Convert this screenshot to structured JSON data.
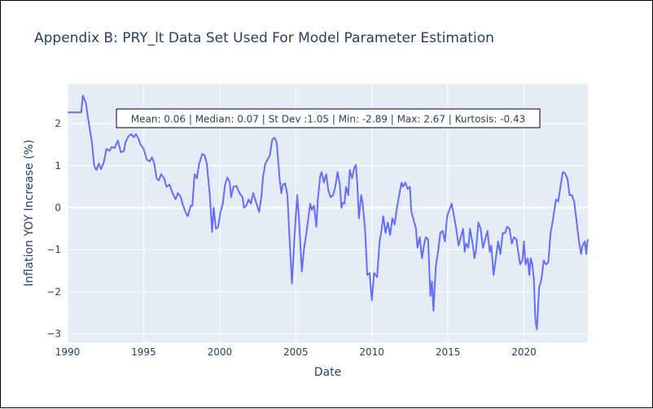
{
  "chart_data": {
    "type": "line",
    "title": "Appendix B: PRY_lt Data Set Used For Model Parameter Estimation",
    "xlabel": "Date",
    "ylabel": "Inflation YOY Increase (%)",
    "xlim": [
      1990,
      2024.2
    ],
    "ylim": [
      -3.2,
      2.95
    ],
    "x_ticks": [
      1990,
      1995,
      2000,
      2005,
      2010,
      2015,
      2020
    ],
    "x_tick_labels": [
      "1990",
      "1995",
      "2000",
      "2005",
      "2010",
      "2015",
      "2020"
    ],
    "y_ticks": [
      -3,
      -2,
      -1,
      0,
      1,
      2
    ],
    "y_tick_labels": [
      "−3",
      "−2",
      "−1",
      "0",
      "1",
      "2"
    ],
    "grid": true,
    "annotation": "Mean: 0.06 | Median: 0.07 | St Dev :1.05 | Min: -2.89 | Max: 2.67 | Kurtosis: -0.43",
    "colors": {
      "line": "#636efa",
      "plot_bg": "#e5ecf6",
      "grid": "#ffffff",
      "text": "#2a3f5f"
    },
    "series": [
      {
        "points": [
          [
            1990.0,
            2.27
          ],
          [
            1990.5,
            2.27
          ],
          [
            1990.9,
            2.27
          ],
          [
            1991.0,
            2.67
          ],
          [
            1991.2,
            2.5
          ],
          [
            1991.4,
            2.0
          ],
          [
            1991.6,
            1.55
          ],
          [
            1991.75,
            1.0
          ],
          [
            1991.9,
            0.9
          ],
          [
            1992.05,
            1.05
          ],
          [
            1992.2,
            0.92
          ],
          [
            1992.4,
            1.1
          ],
          [
            1992.55,
            1.4
          ],
          [
            1992.75,
            1.35
          ],
          [
            1992.9,
            1.45
          ],
          [
            1993.1,
            1.42
          ],
          [
            1993.3,
            1.6
          ],
          [
            1993.5,
            1.32
          ],
          [
            1993.7,
            1.35
          ],
          [
            1993.8,
            1.55
          ],
          [
            1994.0,
            1.7
          ],
          [
            1994.2,
            1.75
          ],
          [
            1994.35,
            1.68
          ],
          [
            1994.5,
            1.75
          ],
          [
            1994.65,
            1.65
          ],
          [
            1994.8,
            1.5
          ],
          [
            1995.0,
            1.4
          ],
          [
            1995.2,
            1.15
          ],
          [
            1995.4,
            1.1
          ],
          [
            1995.55,
            1.2
          ],
          [
            1995.7,
            1.05
          ],
          [
            1995.85,
            0.7
          ],
          [
            1996.0,
            0.65
          ],
          [
            1996.15,
            0.8
          ],
          [
            1996.35,
            0.7
          ],
          [
            1996.5,
            0.5
          ],
          [
            1996.7,
            0.55
          ],
          [
            1996.9,
            0.35
          ],
          [
            1997.1,
            0.2
          ],
          [
            1997.25,
            0.35
          ],
          [
            1997.45,
            0.25
          ],
          [
            1997.55,
            0.1
          ],
          [
            1997.75,
            -0.1
          ],
          [
            1997.9,
            -0.2
          ],
          [
            1998.1,
            0.05
          ],
          [
            1998.2,
            0.05
          ],
          [
            1998.35,
            0.8
          ],
          [
            1998.5,
            0.7
          ],
          [
            1998.65,
            1.05
          ],
          [
            1998.85,
            1.28
          ],
          [
            1999.0,
            1.25
          ],
          [
            1999.15,
            1.05
          ],
          [
            1999.35,
            0.3
          ],
          [
            1999.5,
            -0.58
          ],
          [
            1999.6,
            0.0
          ],
          [
            1999.75,
            -0.5
          ],
          [
            1999.9,
            -0.45
          ],
          [
            2000.05,
            -0.1
          ],
          [
            2000.2,
            0.1
          ],
          [
            2000.35,
            0.55
          ],
          [
            2000.5,
            0.72
          ],
          [
            2000.65,
            0.62
          ],
          [
            2000.75,
            0.25
          ],
          [
            2000.9,
            0.5
          ],
          [
            2001.1,
            0.52
          ],
          [
            2001.3,
            0.35
          ],
          [
            2001.5,
            0.25
          ],
          [
            2001.6,
            0.0
          ],
          [
            2001.75,
            0.05
          ],
          [
            2001.9,
            0.2
          ],
          [
            2002.05,
            0.1
          ],
          [
            2002.2,
            0.35
          ],
          [
            2002.35,
            0.18
          ],
          [
            2002.5,
            0.0
          ],
          [
            2002.6,
            -0.1
          ],
          [
            2002.75,
            0.3
          ],
          [
            2002.85,
            0.75
          ],
          [
            2003.0,
            1.05
          ],
          [
            2003.15,
            1.15
          ],
          [
            2003.3,
            1.25
          ],
          [
            2003.45,
            1.62
          ],
          [
            2003.6,
            1.67
          ],
          [
            2003.75,
            1.55
          ],
          [
            2003.95,
            0.65
          ],
          [
            2004.05,
            0.35
          ],
          [
            2004.15,
            0.55
          ],
          [
            2004.3,
            0.58
          ],
          [
            2004.45,
            0.3
          ],
          [
            2004.6,
            -0.8
          ],
          [
            2004.75,
            -1.8
          ],
          [
            2004.9,
            -0.8
          ],
          [
            2005.0,
            -0.2
          ],
          [
            2005.1,
            0.3
          ],
          [
            2005.2,
            -0.2
          ],
          [
            2005.4,
            -1.52
          ],
          [
            2005.55,
            -0.95
          ],
          [
            2005.7,
            -0.6
          ],
          [
            2005.85,
            -0.2
          ],
          [
            2005.95,
            0.1
          ],
          [
            2006.05,
            -0.05
          ],
          [
            2006.2,
            0.05
          ],
          [
            2006.35,
            -0.45
          ],
          [
            2006.45,
            0.2
          ],
          [
            2006.6,
            0.75
          ],
          [
            2006.7,
            0.85
          ],
          [
            2006.85,
            0.6
          ],
          [
            2007.0,
            0.8
          ],
          [
            2007.15,
            0.4
          ],
          [
            2007.3,
            0.25
          ],
          [
            2007.45,
            0.3
          ],
          [
            2007.6,
            0.5
          ],
          [
            2007.75,
            0.85
          ],
          [
            2007.9,
            0.55
          ],
          [
            2008.0,
            0.0
          ],
          [
            2008.1,
            0.12
          ],
          [
            2008.2,
            0.1
          ],
          [
            2008.3,
            0.5
          ],
          [
            2008.45,
            0.3
          ],
          [
            2008.55,
            0.9
          ],
          [
            2008.7,
            0.7
          ],
          [
            2008.85,
            0.95
          ],
          [
            2008.95,
            1.02
          ],
          [
            2009.05,
            0.55
          ],
          [
            2009.15,
            -0.25
          ],
          [
            2009.3,
            0.3
          ],
          [
            2009.4,
            0.1
          ],
          [
            2009.55,
            -0.5
          ],
          [
            2009.7,
            -1.6
          ],
          [
            2009.85,
            -1.55
          ],
          [
            2010.0,
            -2.2
          ],
          [
            2010.15,
            -1.55
          ],
          [
            2010.35,
            -1.65
          ],
          [
            2010.5,
            -0.85
          ],
          [
            2010.65,
            -0.5
          ],
          [
            2010.75,
            -0.2
          ],
          [
            2010.9,
            -0.6
          ],
          [
            2011.05,
            -0.35
          ],
          [
            2011.2,
            -0.65
          ],
          [
            2011.35,
            -0.25
          ],
          [
            2011.5,
            -0.4
          ],
          [
            2011.65,
            0.0
          ],
          [
            2011.8,
            0.3
          ],
          [
            2011.95,
            0.6
          ],
          [
            2012.05,
            0.5
          ],
          [
            2012.2,
            0.6
          ],
          [
            2012.35,
            0.45
          ],
          [
            2012.5,
            0.5
          ],
          [
            2012.6,
            -0.1
          ],
          [
            2012.75,
            -0.3
          ],
          [
            2012.9,
            -0.5
          ],
          [
            2013.0,
            -0.95
          ],
          [
            2013.15,
            -0.7
          ],
          [
            2013.3,
            -1.2
          ],
          [
            2013.45,
            -0.85
          ],
          [
            2013.55,
            -0.7
          ],
          [
            2013.7,
            -0.75
          ],
          [
            2013.85,
            -2.1
          ],
          [
            2013.95,
            -1.75
          ],
          [
            2014.05,
            -2.45
          ],
          [
            2014.2,
            -1.4
          ],
          [
            2014.35,
            -1.05
          ],
          [
            2014.5,
            -0.6
          ],
          [
            2014.65,
            -0.55
          ],
          [
            2014.8,
            -0.8
          ],
          [
            2014.95,
            -0.2
          ],
          [
            2015.1,
            -0.05
          ],
          [
            2015.25,
            0.1
          ],
          [
            2015.4,
            -0.2
          ],
          [
            2015.55,
            -0.5
          ],
          [
            2015.7,
            -0.9
          ],
          [
            2015.85,
            -0.7
          ],
          [
            2016.0,
            -0.5
          ],
          [
            2016.1,
            -1.05
          ],
          [
            2016.2,
            -0.85
          ],
          [
            2016.35,
            -0.95
          ],
          [
            2016.45,
            -0.5
          ],
          [
            2016.6,
            -0.8
          ],
          [
            2016.75,
            -1.2
          ],
          [
            2016.85,
            -1.0
          ],
          [
            2017.0,
            -0.35
          ],
          [
            2017.15,
            -0.5
          ],
          [
            2017.3,
            -0.95
          ],
          [
            2017.45,
            -0.75
          ],
          [
            2017.6,
            -0.55
          ],
          [
            2017.75,
            -1.05
          ],
          [
            2017.85,
            -0.9
          ],
          [
            2018.0,
            -1.6
          ],
          [
            2018.15,
            -1.2
          ],
          [
            2018.3,
            -0.8
          ],
          [
            2018.45,
            -1.1
          ],
          [
            2018.6,
            -0.6
          ],
          [
            2018.75,
            -0.6
          ],
          [
            2018.9,
            -0.45
          ],
          [
            2019.05,
            -0.5
          ],
          [
            2019.2,
            -0.85
          ],
          [
            2019.35,
            -0.7
          ],
          [
            2019.5,
            -0.75
          ],
          [
            2019.6,
            -1.0
          ],
          [
            2019.75,
            -1.35
          ],
          [
            2019.9,
            -1.25
          ],
          [
            2020.0,
            -0.8
          ],
          [
            2020.1,
            -1.35
          ],
          [
            2020.25,
            -1.2
          ],
          [
            2020.35,
            -1.6
          ],
          [
            2020.45,
            -1.2
          ],
          [
            2020.55,
            -1.35
          ],
          [
            2020.65,
            -1.7
          ],
          [
            2020.75,
            -2.65
          ],
          [
            2020.85,
            -2.89
          ],
          [
            2021.0,
            -1.9
          ],
          [
            2021.15,
            -1.7
          ],
          [
            2021.3,
            -1.25
          ],
          [
            2021.45,
            -1.35
          ],
          [
            2021.6,
            -1.3
          ],
          [
            2021.75,
            -0.6
          ],
          [
            2021.9,
            -0.3
          ],
          [
            2022.1,
            0.2
          ],
          [
            2022.25,
            0.15
          ],
          [
            2022.4,
            0.5
          ],
          [
            2022.55,
            0.85
          ],
          [
            2022.7,
            0.82
          ],
          [
            2022.85,
            0.7
          ],
          [
            2023.0,
            0.3
          ],
          [
            2023.15,
            0.3
          ],
          [
            2023.3,
            0.15
          ],
          [
            2023.45,
            -0.3
          ],
          [
            2023.6,
            -0.75
          ],
          [
            2023.75,
            -1.1
          ],
          [
            2023.85,
            -0.9
          ],
          [
            2024.0,
            -0.8
          ],
          [
            2024.05,
            -0.95
          ],
          [
            2024.1,
            -1.1
          ],
          [
            2024.15,
            -0.85
          ],
          [
            2024.2,
            -0.75
          ]
        ]
      }
    ]
  }
}
